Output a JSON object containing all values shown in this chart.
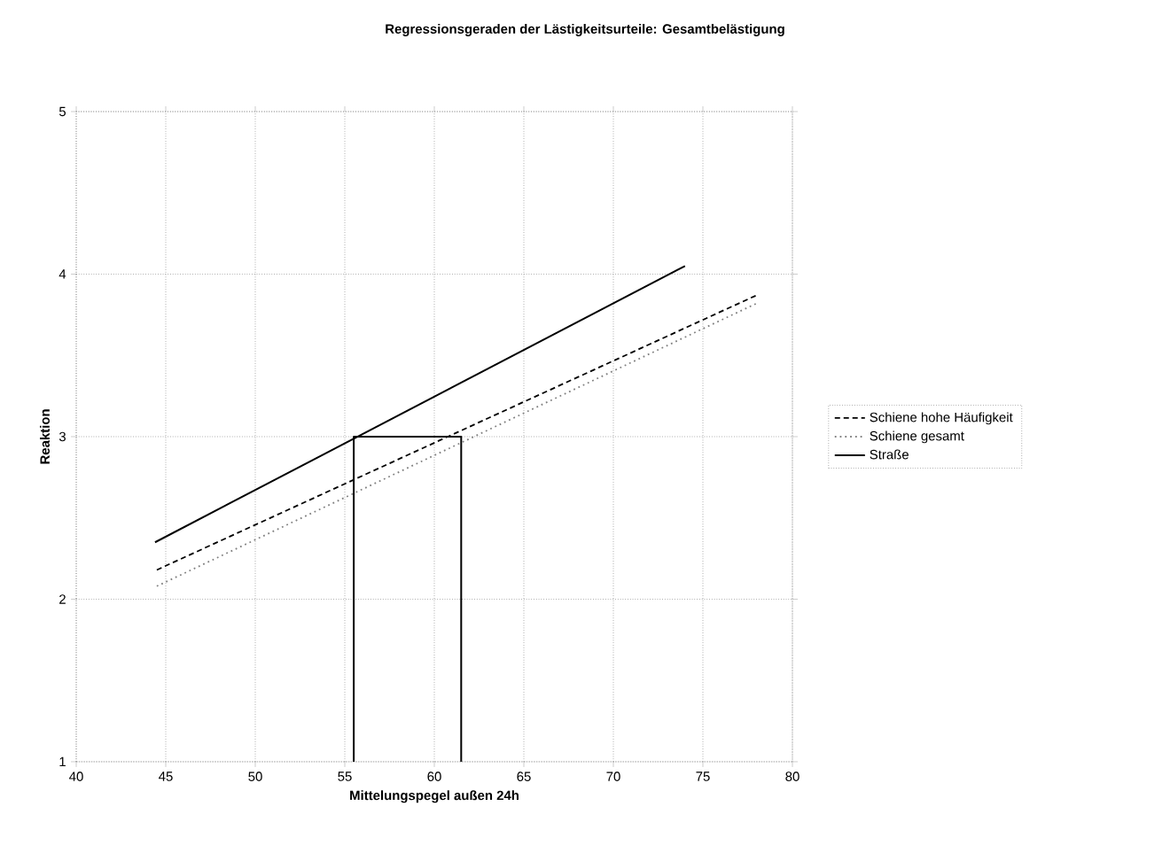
{
  "chart_data": {
    "type": "line",
    "title": "Regressionsgeraden der Lästigkeitsurteile: Gesamtbelästigung",
    "xlabel": "Mittelungspegel außen 24h",
    "ylabel": "Reaktion",
    "xlim": [
      40,
      80
    ],
    "ylim": [
      1,
      5
    ],
    "xticks": [
      40,
      45,
      50,
      55,
      60,
      65,
      70,
      75,
      80
    ],
    "yticks": [
      1,
      2,
      3,
      4,
      5
    ],
    "grid": true,
    "legend": "right",
    "marker": "none",
    "series": [
      {
        "name": "Schiene hohe Häufigkeit",
        "color": "#000000",
        "line_style": "dashed",
        "x": [
          44.5,
          78
        ],
        "values": [
          2.18,
          3.87
        ]
      },
      {
        "name": "Schiene gesamt",
        "color": "#808080",
        "line_style": "dotted",
        "x": [
          44.5,
          78
        ],
        "values": [
          2.08,
          3.82
        ]
      },
      {
        "name": "Straße",
        "color": "#000000",
        "line_style": "solid",
        "x": [
          44.4,
          74
        ],
        "values": [
          2.35,
          4.05
        ]
      },
      {
        "color": "#000000",
        "line_style": "solid",
        "x": [
          55.5,
          55.5,
          61.5,
          61.5
        ],
        "values": [
          1,
          3,
          3,
          1
        ]
      }
    ]
  }
}
